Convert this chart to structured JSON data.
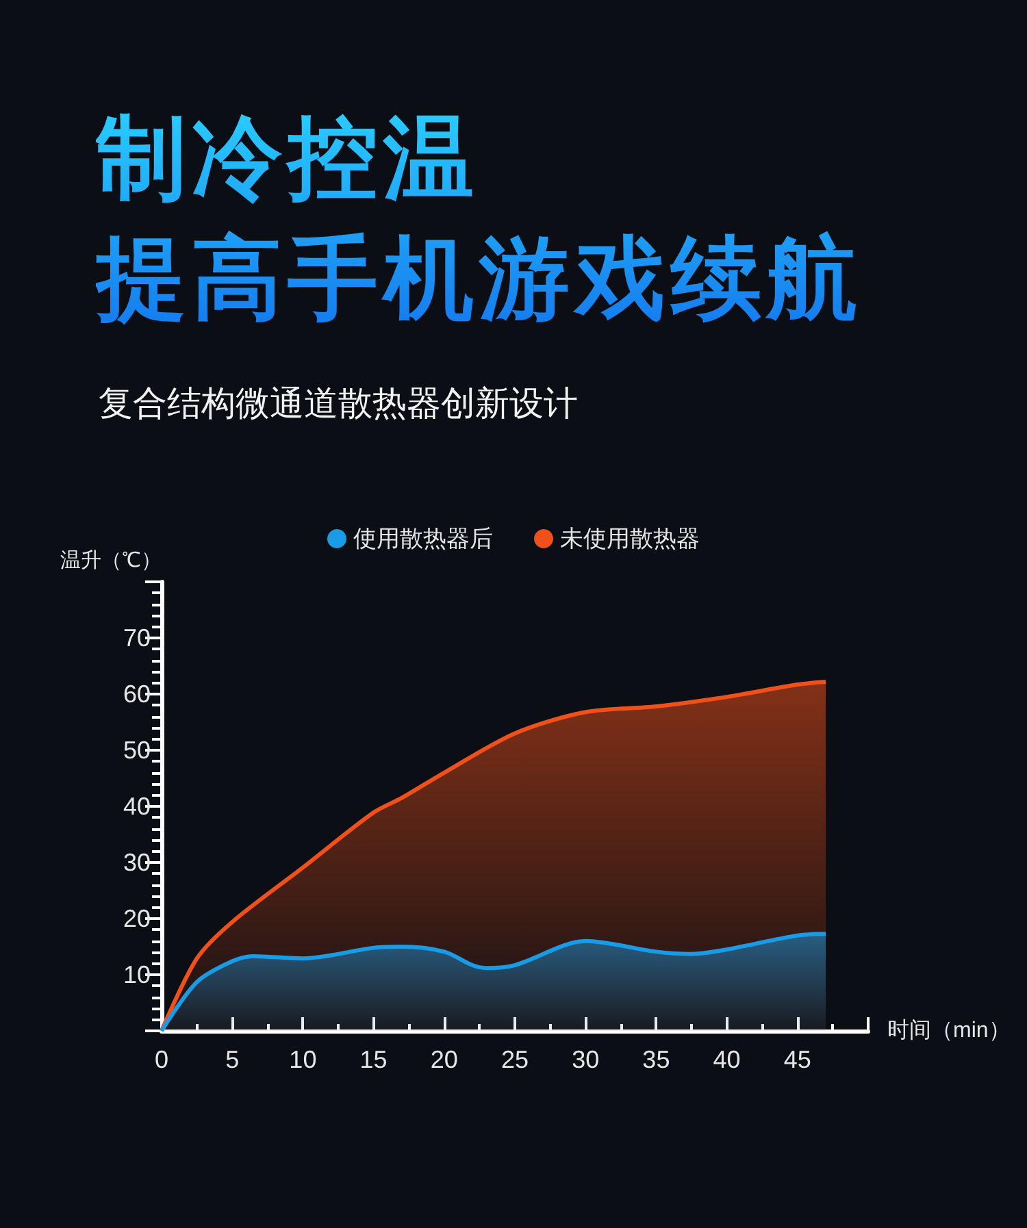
{
  "chart_data": {
    "type": "area",
    "title": "制冷控温提高手机游戏续航",
    "subtitle": "复合结构微通道散热器创新设计",
    "xlabel": "时间（min）",
    "ylabel": "温升（℃）",
    "xlim": [
      0,
      50
    ],
    "xticks": [
      0,
      5,
      10,
      15,
      20,
      25,
      30,
      35,
      40,
      45
    ],
    "ylim": [
      0,
      80
    ],
    "yticks": [
      10,
      20,
      30,
      40,
      50,
      60,
      70
    ],
    "legend": "top",
    "grid": false,
    "marker": "none",
    "series": [
      {
        "name": "使用散热器后",
        "color": "#1a9be6",
        "x": [
          0,
          2.5,
          5,
          6.5,
          10,
          15,
          17,
          20,
          22,
          23,
          25,
          30,
          35,
          37.5,
          40,
          45,
          47
        ],
        "values": [
          0,
          8.7,
          12.4,
          13.3,
          12.9,
          14.8,
          15,
          14.1,
          11.7,
          11.2,
          11.7,
          16,
          14.1,
          13.7,
          14.5,
          17,
          17.3
        ]
      },
      {
        "name": "未使用散热器",
        "color": "#f0501a",
        "x": [
          0,
          2.5,
          5,
          10,
          15,
          17,
          20,
          25,
          30,
          35,
          40,
          45,
          47
        ],
        "values": [
          0,
          12.9,
          19.4,
          29.1,
          38.9,
          41.5,
          46,
          53,
          56.8,
          57.8,
          59.5,
          61.7,
          62.2
        ]
      }
    ]
  }
}
